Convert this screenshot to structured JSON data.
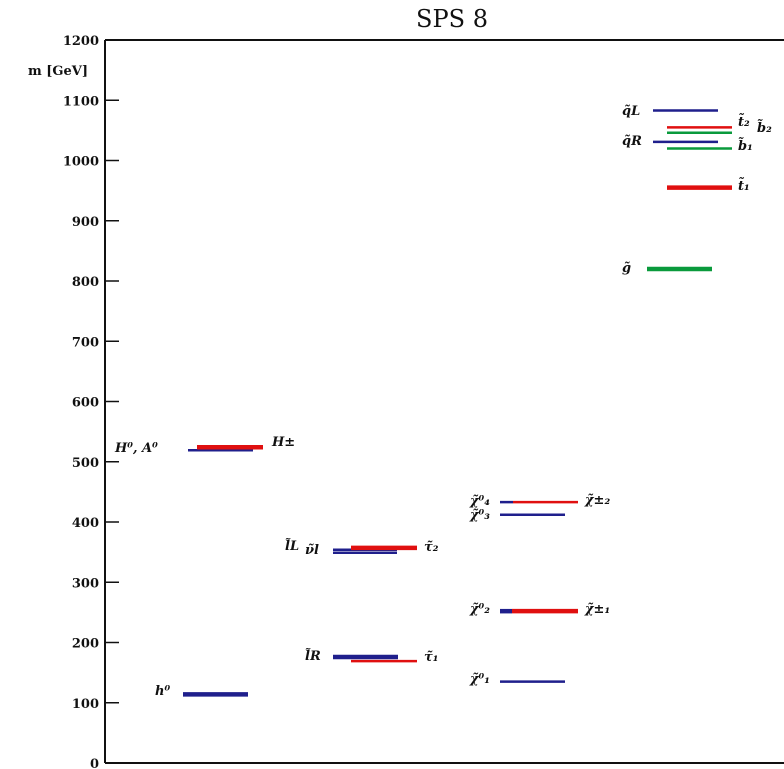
{
  "chart_data": {
    "type": "bar",
    "title": "SPS 8",
    "ylabel": "m [GeV]",
    "xlabel": "",
    "ylim": [
      0,
      1200
    ],
    "yticks": [
      0,
      100,
      200,
      300,
      400,
      500,
      600,
      700,
      800,
      900,
      1000,
      1100,
      1200
    ],
    "grid": false,
    "colors": {
      "blue": "#1f1f8c",
      "red": "#e01010",
      "green": "#0a9a3c"
    },
    "levels": [
      {
        "group": "higgs",
        "mass": 114,
        "color": "blue",
        "thick": true
      },
      {
        "group": "higgs",
        "mass": 519,
        "color": "blue",
        "thick": false
      },
      {
        "group": "higgs",
        "mass": 524,
        "color": "red",
        "thick": true
      },
      {
        "group": "sleptons",
        "mass": 349,
        "color": "blue",
        "thick": false
      },
      {
        "group": "sleptons",
        "mass": 354,
        "color": "blue",
        "thick": false
      },
      {
        "group": "sleptons",
        "mass": 357,
        "color": "red",
        "thick": true
      },
      {
        "group": "sleptons",
        "mass": 176,
        "color": "blue",
        "thick": true
      },
      {
        "group": "sleptons",
        "mass": 169,
        "color": "red",
        "thick": false
      },
      {
        "group": "gauginos",
        "mass": 135,
        "color": "blue",
        "thick": false
      },
      {
        "group": "gauginos",
        "mass": 252,
        "color": "blue",
        "thick": true
      },
      {
        "group": "gauginos",
        "mass": 252,
        "color": "red",
        "thick": true
      },
      {
        "group": "gauginos",
        "mass": 412,
        "color": "blue",
        "thick": false
      },
      {
        "group": "gauginos",
        "mass": 433,
        "color": "blue",
        "thick": false
      },
      {
        "group": "gauginos",
        "mass": 433,
        "color": "red",
        "thick": false
      },
      {
        "group": "squarks",
        "mass": 820,
        "color": "green",
        "thick": true
      },
      {
        "group": "squarks",
        "mass": 955,
        "color": "red",
        "thick": true
      },
      {
        "group": "squarks",
        "mass": 1020,
        "color": "green",
        "thick": false
      },
      {
        "group": "squarks",
        "mass": 1031,
        "color": "blue",
        "thick": false
      },
      {
        "group": "squarks",
        "mass": 1046,
        "color": "green",
        "thick": false
      },
      {
        "group": "squarks",
        "mass": 1055,
        "color": "red",
        "thick": false
      },
      {
        "group": "squarks",
        "mass": 1083,
        "color": "blue",
        "thick": false
      }
    ],
    "labels": {
      "h0": "h⁰",
      "H0A0": "H⁰, A⁰",
      "Hpm": "H±",
      "lL": "l̃L",
      "nul": "ν̃l",
      "tau2": "τ̃₂",
      "lR": "l̃R",
      "tau1": "τ̃₁",
      "chi10": "χ̃⁰₁",
      "chi20": "χ̃⁰₂",
      "chi1pm": "χ̃±₁",
      "chi30": "χ̃⁰₃",
      "chi40": "χ̃⁰₄",
      "chi2pm": "χ̃±₂",
      "gluino": "g̃",
      "stop1": "t̃₁",
      "sbot1": "b̃₁",
      "qR": "q̃R",
      "stop2": "t̃₂",
      "sbot2": "b̃₂",
      "qL": "q̃L"
    }
  }
}
